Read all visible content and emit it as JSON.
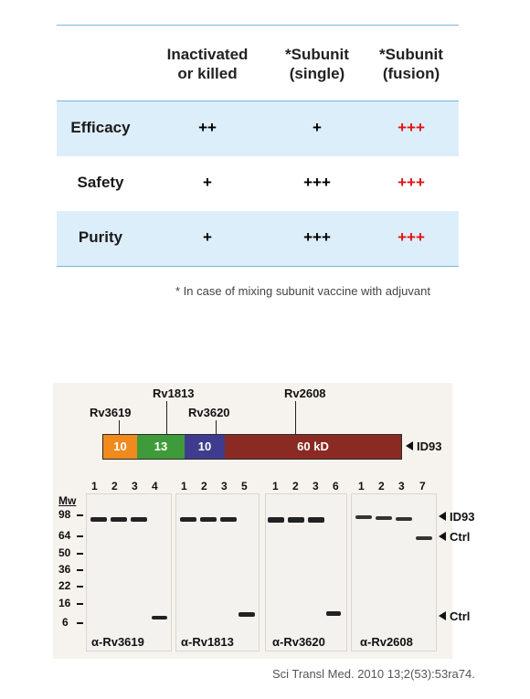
{
  "table": {
    "headers": [
      {
        "line1": "Inactivated",
        "line2": "or killed"
      },
      {
        "line1": "*Subunit",
        "line2": "(single)"
      },
      {
        "line1": "*Subunit",
        "line2": "(fusion)"
      }
    ],
    "rows": [
      {
        "label": "Efficacy",
        "values": [
          "++",
          "+",
          "+++"
        ]
      },
      {
        "label": "Safety",
        "values": [
          "+",
          "+++",
          "+++"
        ]
      },
      {
        "label": "Purity",
        "values": [
          "+",
          "+++",
          "+++"
        ]
      }
    ],
    "footnote": "* In case of mixing subunit vaccine with adjuvant"
  },
  "figure": {
    "construct_labels": [
      "Rv3619",
      "Rv1813",
      "Rv3620",
      "Rv2608"
    ],
    "segments": [
      {
        "label": "10",
        "color": "#f08a1c"
      },
      {
        "label": "13",
        "color": "#3f9b3a"
      },
      {
        "label": "10",
        "color": "#3f3c8f"
      },
      {
        "label": "60 kD",
        "color": "#8a2a22"
      }
    ],
    "construct_name": "ID93",
    "mw_title": "Mw",
    "mw_markers": [
      "98",
      "64",
      "50",
      "36",
      "22",
      "16",
      "6"
    ],
    "blots": [
      {
        "lanes": [
          "1",
          "2",
          "3",
          "4"
        ],
        "antibody": "α-Rv3619"
      },
      {
        "lanes": [
          "1",
          "2",
          "3",
          "5"
        ],
        "antibody": "α-Rv1813"
      },
      {
        "lanes": [
          "1",
          "2",
          "3",
          "6"
        ],
        "antibody": "α-Rv3620"
      },
      {
        "lanes": [
          "1",
          "2",
          "3",
          "7"
        ],
        "antibody": "α-Rv2608"
      }
    ],
    "right_labels": [
      "ID93",
      "Ctrl",
      "Ctrl"
    ]
  },
  "citation": "Sci Transl Med. 2010 13;2(53):53ra74."
}
